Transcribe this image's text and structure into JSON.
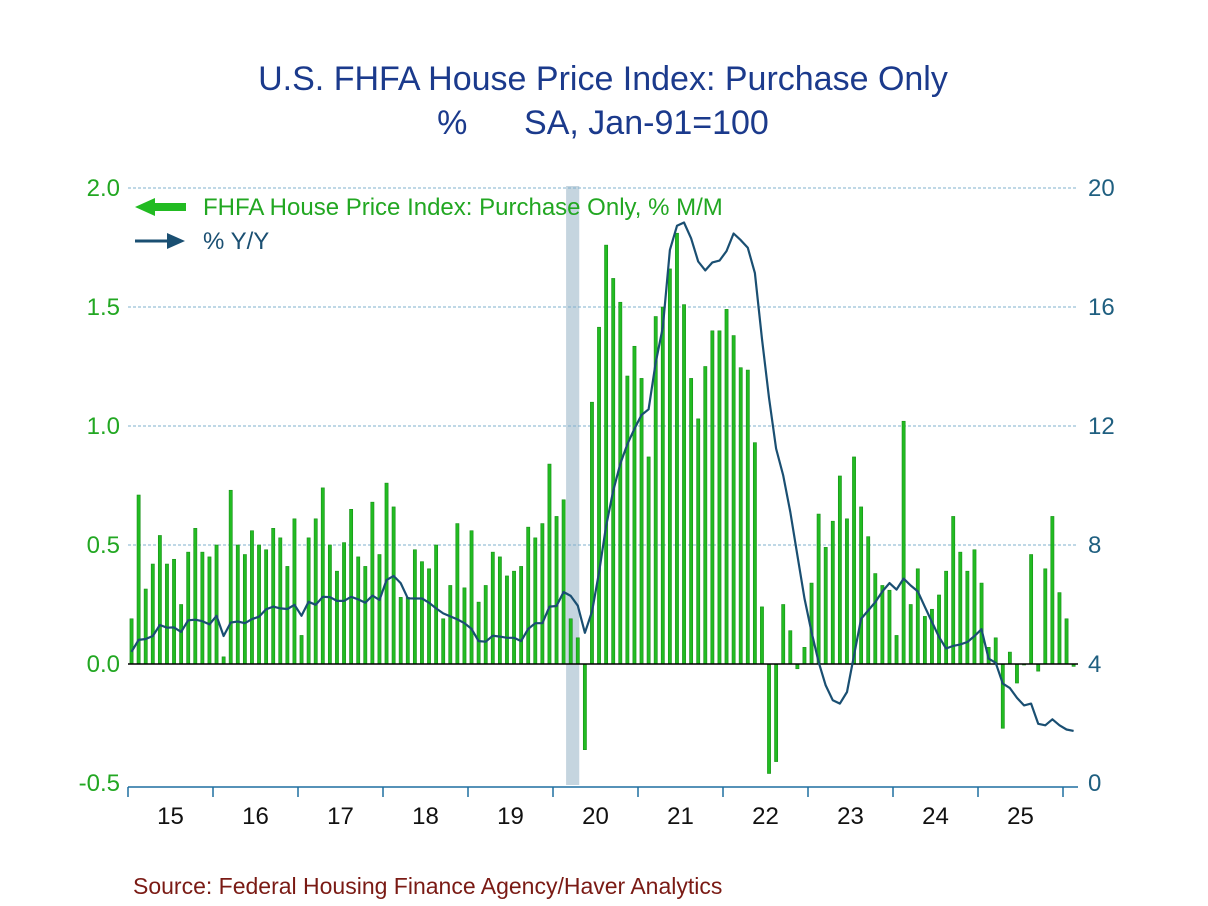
{
  "chart_data": {
    "type": "bar+line",
    "title": "U.S. FHFA House Price Index: Purchase Only",
    "subtitle": "%      SA, Jan-91=100",
    "x": {
      "start": "Jan-2015",
      "frequency": "monthly",
      "tick_labels": [
        "15",
        "16",
        "17",
        "18",
        "19",
        "20",
        "21",
        "22",
        "23",
        "24",
        "25"
      ]
    },
    "left_axis": {
      "range": [
        -0.5,
        2.0
      ],
      "ticks": [
        "-0.5",
        "0.0",
        "0.5",
        "1.0",
        "1.5",
        "2.0"
      ],
      "grid": true
    },
    "right_axis": {
      "range": [
        0,
        20
      ],
      "ticks": [
        "0",
        "4",
        "8",
        "12",
        "16",
        "20"
      ]
    },
    "legend_placement": "top-left",
    "recession_shading": {
      "start": "2020-02",
      "end": "2020-04",
      "color": "#c5d5df"
    },
    "series": [
      {
        "name": "FHFA House Price Index: Purchase Only, % M/M",
        "type": "bar",
        "axis": "left",
        "color": "#22bb22",
        "values": [
          0.19,
          0.71,
          0.315,
          0.42,
          0.54,
          0.42,
          0.44,
          0.25,
          0.47,
          0.57,
          0.47,
          0.45,
          0.5,
          0.03,
          0.73,
          0.5,
          0.46,
          0.56,
          0.5,
          0.48,
          0.57,
          0.53,
          0.41,
          0.61,
          0.12,
          0.53,
          0.61,
          0.74,
          0.5,
          0.39,
          0.51,
          0.65,
          0.45,
          0.41,
          0.68,
          0.46,
          0.76,
          0.66,
          0.28,
          0.28,
          0.48,
          0.43,
          0.4,
          0.5,
          0.19,
          0.33,
          0.59,
          0.32,
          0.56,
          0.26,
          0.33,
          0.47,
          0.45,
          0.37,
          0.39,
          0.41,
          0.575,
          0.53,
          0.59,
          0.84,
          0.62,
          0.69,
          0.19,
          0.11,
          -0.36,
          1.1,
          1.415,
          1.76,
          1.62,
          1.52,
          1.21,
          1.335,
          1.2,
          0.87,
          1.46,
          1.5,
          1.66,
          1.81,
          1.51,
          1.2,
          1.03,
          1.25,
          1.4,
          1.4,
          1.49,
          1.38,
          1.245,
          1.235,
          0.93,
          0.24,
          -0.46,
          -0.41,
          0.25,
          0.14,
          -0.02,
          0.07,
          0.34,
          0.63,
          0.49,
          0.6,
          0.79,
          0.61,
          0.87,
          0.66,
          0.535,
          0.38,
          0.33,
          0.31,
          0.12,
          1.02,
          0.25,
          0.4,
          0.2,
          0.23,
          0.29,
          0.39,
          0.62,
          0.47,
          0.39,
          0.48,
          0.34,
          0.07,
          0.11,
          -0.27,
          0.05,
          -0.08,
          0.0,
          0.46,
          -0.03,
          0.4,
          0.62,
          0.3,
          0.19,
          -0.01
        ]
      },
      {
        "name": "% Y/Y",
        "type": "line",
        "axis": "right",
        "color": "#1a4f72",
        "values": [
          4.41,
          4.81,
          4.84,
          4.94,
          5.31,
          5.22,
          5.23,
          5.08,
          5.47,
          5.49,
          5.44,
          5.33,
          5.62,
          4.94,
          5.39,
          5.43,
          5.37,
          5.51,
          5.59,
          5.84,
          5.93,
          5.87,
          5.85,
          5.99,
          5.62,
          6.09,
          5.99,
          6.26,
          6.25,
          6.12,
          6.12,
          6.26,
          6.17,
          6.06,
          6.3,
          6.15,
          6.82,
          6.96,
          6.72,
          6.21,
          6.2,
          6.2,
          6.06,
          5.87,
          5.7,
          5.6,
          5.5,
          5.37,
          5.18,
          4.77,
          4.75,
          4.95,
          4.92,
          4.88,
          4.88,
          4.77,
          5.18,
          5.37,
          5.37,
          5.93,
          5.95,
          6.42,
          6.29,
          5.96,
          5.05,
          5.76,
          7.07,
          8.64,
          9.82,
          10.73,
          11.39,
          11.91,
          12.37,
          12.56,
          14.13,
          15.31,
          17.92,
          18.73,
          18.84,
          18.31,
          17.53,
          17.23,
          17.5,
          17.56,
          17.88,
          18.47,
          18.25,
          17.99,
          17.14,
          14.92,
          12.95,
          11.24,
          10.34,
          9.11,
          7.65,
          6.2,
          5.08,
          4.07,
          3.28,
          2.78,
          2.67,
          3.06,
          4.29,
          5.52,
          5.8,
          6.08,
          6.44,
          6.72,
          6.5,
          6.87,
          6.64,
          6.44,
          5.92,
          5.41,
          4.91,
          4.52,
          4.61,
          4.66,
          4.74,
          4.94,
          5.17,
          4.18,
          4.04,
          3.34,
          3.19,
          2.86,
          2.61,
          2.67,
          1.99,
          1.94,
          2.14,
          1.94,
          1.8,
          1.75
        ]
      }
    ],
    "source": "Source:  Federal Housing Finance Agency/Haver Analytics"
  }
}
